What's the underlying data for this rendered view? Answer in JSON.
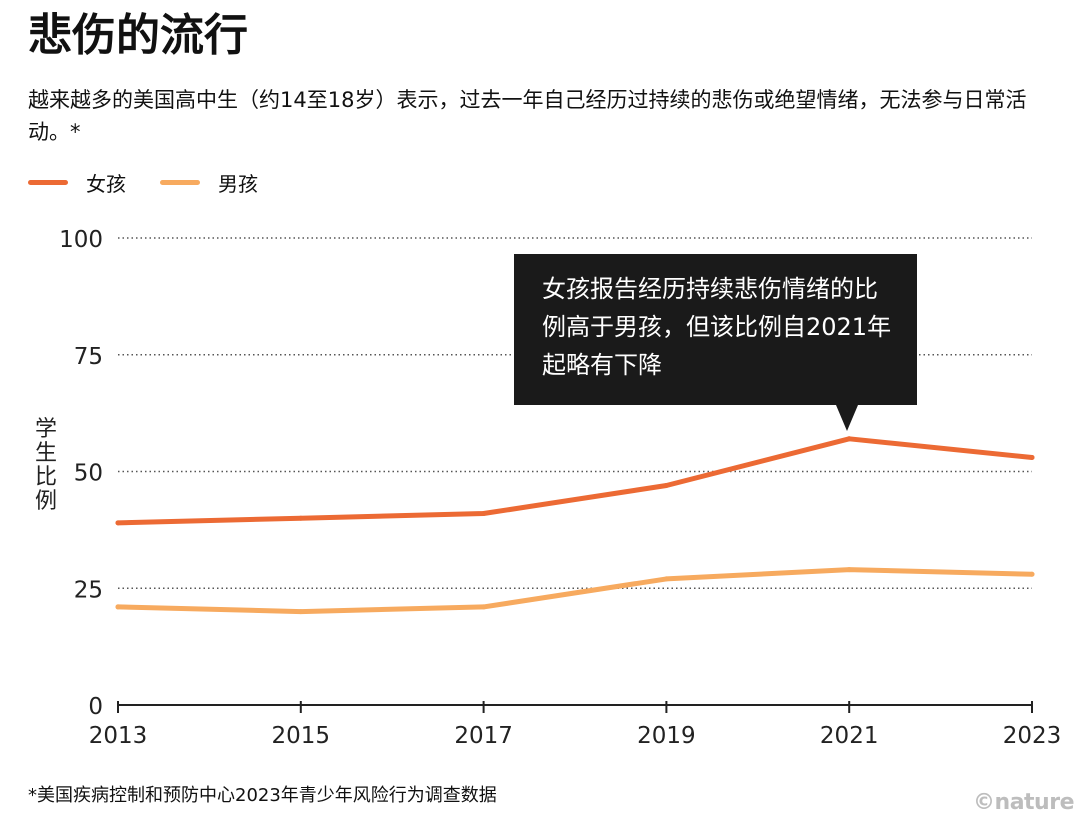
{
  "header": {
    "title": "悲伤的流行",
    "subtitle": "越来越多的美国高中生（约14至18岁）表示，过去一年自己经历过持续的悲伤或绝望情绪，无法参与日常活动。*"
  },
  "footer": {
    "footnote": "*美国疾病控制和预防中心2023年青少年风险行为调查数据",
    "credit": "©nature"
  },
  "colors": {
    "girls": "#ec6a34",
    "boys": "#f7aa5f",
    "gridline": "#555555",
    "axis": "#222222",
    "callout_bg": "#1a1a1a"
  },
  "annotation": {
    "text": "女孩报告经历持续悲伤情绪的比例高于男孩，但该比例自2021年起略有下降"
  },
  "chart_data": {
    "type": "line",
    "title": "悲伤的流行",
    "ylabel": "学生比例",
    "xlabel": "",
    "x": [
      "2013",
      "2015",
      "2017",
      "2019",
      "2021",
      "2023"
    ],
    "series": [
      {
        "name": "女孩",
        "values": [
          39,
          40,
          41,
          47,
          57,
          53
        ]
      },
      {
        "name": "男孩",
        "values": [
          21,
          20,
          21,
          27,
          29,
          28
        ]
      }
    ],
    "ylim": [
      0,
      100
    ],
    "yticks": [
      0,
      25,
      50,
      75,
      100
    ],
    "grid": "horizontal-dotted",
    "legend_position": "top-left"
  }
}
